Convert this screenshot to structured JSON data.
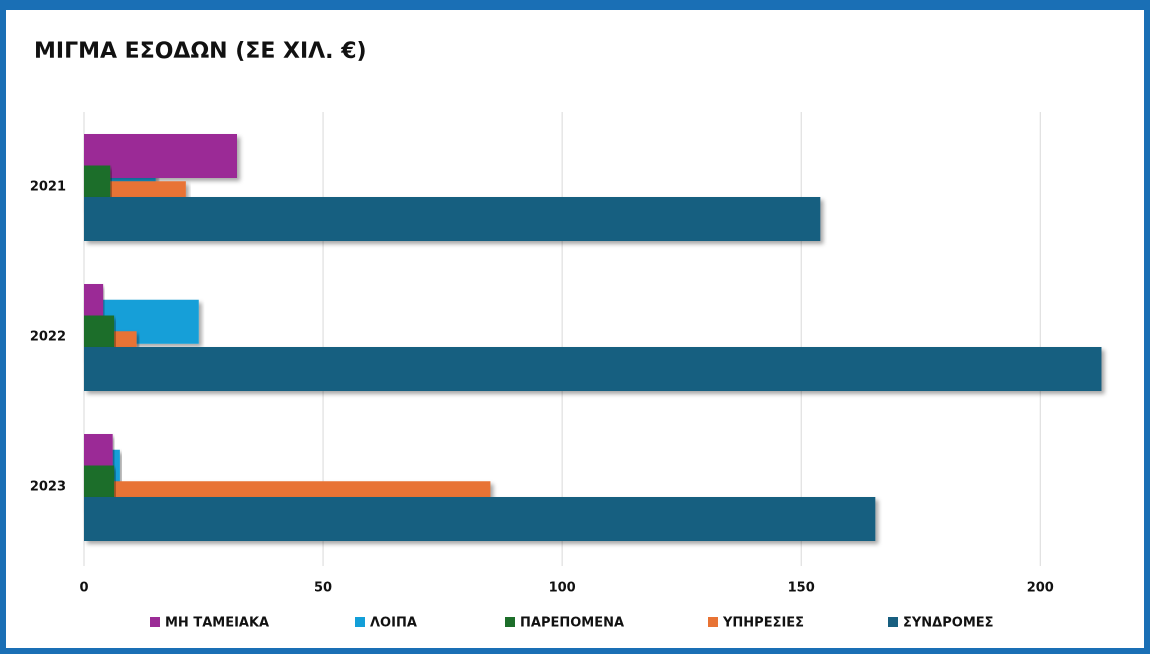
{
  "chart_data": {
    "type": "hbar",
    "title": "ΜΙΓΜΑ ΕΣΟΔΩΝ (ΣΕ ΧΙΛ. €)",
    "categories": [
      "2021",
      "2022",
      "2023"
    ],
    "series": [
      {
        "name": "ΜΗ ΤΑΜΕΙΑΚΑ",
        "color": "#9b2c96",
        "values": [
          32,
          4,
          6
        ]
      },
      {
        "name": "ΛΟΙΠΑ",
        "color": "#139fd8",
        "values": [
          15,
          24,
          7.5
        ]
      },
      {
        "name": "ΠΑΡΕΠΟΜΕΝΑ",
        "color": "#1d6e2a",
        "values": [
          5.5,
          6.3,
          6.3
        ]
      },
      {
        "name": "ΥΠΗΡΕΣΙΕΣ",
        "color": "#e87334",
        "values": [
          21.3,
          11,
          85
        ]
      },
      {
        "name": "ΣΥΝΔΡΟΜΕΣ",
        "color": "#185f80",
        "values": [
          154,
          212.8,
          165.5
        ]
      }
    ],
    "xlim": [
      0,
      215
    ],
    "xticks": [
      0,
      50,
      100,
      150,
      200
    ],
    "grid": true,
    "legend": "bottom"
  }
}
